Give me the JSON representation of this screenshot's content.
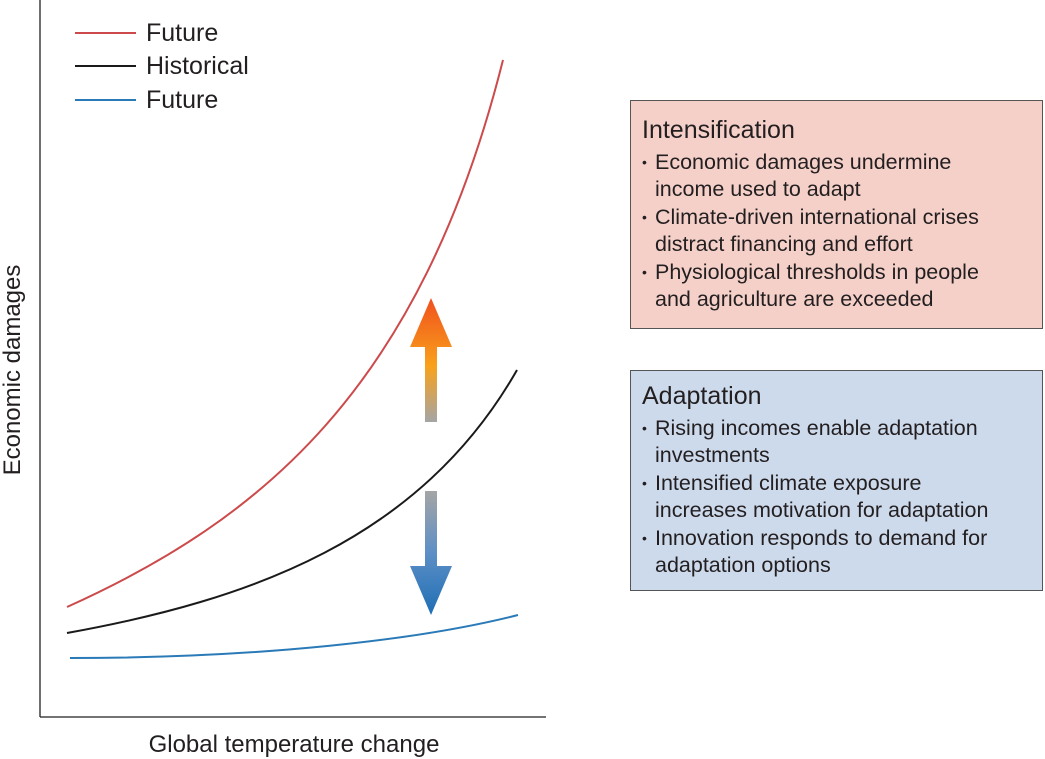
{
  "legend": [
    {
      "label": "Future",
      "color": "#cc4a4b"
    },
    {
      "label": "Historical",
      "color": "#1a1a1a"
    },
    {
      "label": "Future",
      "color": "#2a7ab8"
    }
  ],
  "axes": {
    "xlabel": "Global temperature change",
    "ylabel": "Economic damages"
  },
  "curves": {
    "intensified_future": {
      "color": "#cc4a4b",
      "shape": "steep convex, rising sharply"
    },
    "historical": {
      "color": "#1a1a1a",
      "shape": "moderate convex"
    },
    "adapted_future": {
      "color": "#2a7ab8",
      "shape": "nearly flat, slight rise"
    }
  },
  "arrows": {
    "up": {
      "meaning": "intensification",
      "gradient": [
        "#f0501e",
        "#f9a11b",
        "#a5a5a5"
      ]
    },
    "down": {
      "meaning": "adaptation",
      "gradient": [
        "#a5a5a5",
        "#5d8fc6",
        "#1f6eb4"
      ]
    }
  },
  "intensification": {
    "title": "Intensification",
    "color": "#f5d0c9",
    "items": [
      [
        "Economic damages undermine",
        "income used to adapt"
      ],
      [
        "Climate-driven international crises",
        "distract financing and effort"
      ],
      [
        "Physiological thresholds in people",
        "and agriculture are exceeded"
      ]
    ]
  },
  "adaptation": {
    "title": "Adaptation",
    "color": "#cddaec",
    "items": [
      [
        "Rising incomes enable adaptation",
        "investments"
      ],
      [
        "Intensified climate exposure",
        "increases motivation for adaptation"
      ],
      [
        "Innovation responds to demand for",
        "adaptation options"
      ]
    ]
  }
}
